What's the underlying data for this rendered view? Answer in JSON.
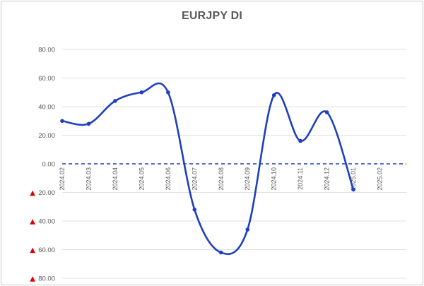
{
  "chart_data": {
    "type": "line",
    "title": "EURJPY DI",
    "xlabel": "",
    "ylabel": "",
    "ylim": [
      -80,
      80
    ],
    "y_ticks": [
      80,
      60,
      40,
      20,
      0,
      -20,
      -40,
      -60,
      -80
    ],
    "y_tick_labels": [
      "80.00",
      "60.00",
      "40.00",
      "20.00",
      "0.00",
      "20.00",
      "40.00",
      "60.00",
      "80.00"
    ],
    "negative_marker": "▲",
    "categories": [
      "2024.02",
      "2024.03",
      "2024.04",
      "2024.05",
      "2024.06",
      "2024.07",
      "2024.08",
      "2024.09",
      "2024.10",
      "2024.11",
      "2024.12",
      "2025.01",
      "2025.02"
    ],
    "series": [
      {
        "values": [
          30,
          28,
          44,
          50,
          50,
          -32,
          -62,
          -46,
          48,
          16,
          36,
          -18,
          null
        ],
        "color": "#1f3fbf",
        "smooth": true,
        "markers": true
      }
    ],
    "zero_line": {
      "style": "dashed",
      "color": "#1f3fbf"
    },
    "grid": true,
    "grid_color": "#e0e0e0",
    "legend": "none"
  }
}
